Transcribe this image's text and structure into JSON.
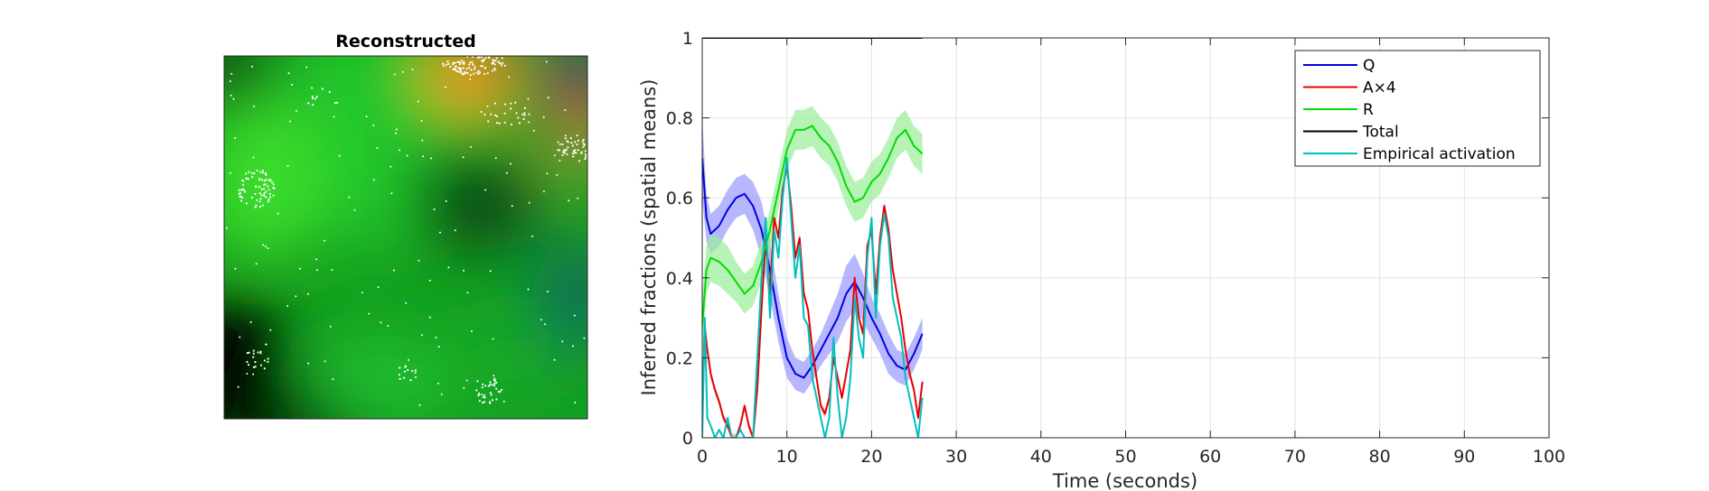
{
  "figure": {
    "left_panel_title": "Reconstructed"
  },
  "chart_data": {
    "type": "line",
    "title": "",
    "xlabel": "Time (seconds)",
    "ylabel": "Inferred fractions (spatial means)",
    "xlim": [
      0,
      100
    ],
    "ylim": [
      0,
      1
    ],
    "xticks": [
      0,
      10,
      20,
      30,
      40,
      50,
      60,
      70,
      80,
      90,
      100
    ],
    "yticks": [
      0,
      0.2,
      0.4,
      0.6,
      0.8,
      1
    ],
    "ytick_labels": [
      "0",
      "0.2",
      "0.4",
      "0.6",
      "0.8",
      "1"
    ],
    "grid": true,
    "legend_position": "top-right",
    "series": [
      {
        "name": "Q",
        "color": "#0000e6",
        "band_color": "#9999ff",
        "x": [
          0,
          0.5,
          1,
          2,
          3,
          4,
          5,
          6,
          7,
          8,
          9,
          10,
          11,
          12,
          13,
          14,
          15,
          16,
          17,
          18,
          19,
          20,
          21,
          22,
          23,
          24,
          25,
          26
        ],
        "y": [
          0.7,
          0.55,
          0.51,
          0.53,
          0.57,
          0.6,
          0.61,
          0.58,
          0.52,
          0.42,
          0.3,
          0.2,
          0.16,
          0.15,
          0.18,
          0.22,
          0.26,
          0.3,
          0.36,
          0.39,
          0.35,
          0.3,
          0.26,
          0.21,
          0.18,
          0.17,
          0.21,
          0.26
        ],
        "band": [
          0.1,
          0.06,
          0.05,
          0.05,
          0.05,
          0.05,
          0.05,
          0.06,
          0.07,
          0.07,
          0.06,
          0.05,
          0.04,
          0.04,
          0.04,
          0.04,
          0.05,
          0.06,
          0.07,
          0.07,
          0.06,
          0.05,
          0.05,
          0.05,
          0.04,
          0.04,
          0.04,
          0.04
        ]
      },
      {
        "name": "A×4",
        "color": "#e60000",
        "band_color": "#ff9999",
        "x": [
          0,
          0.3,
          0.6,
          1,
          1.5,
          2,
          2.5,
          3,
          3.5,
          4,
          4.5,
          5,
          5.5,
          6,
          6.5,
          7,
          7.5,
          8,
          8.5,
          9,
          9.5,
          10,
          10.5,
          11,
          11.5,
          12,
          12.5,
          13,
          13.5,
          14,
          14.5,
          15,
          15.5,
          16,
          16.5,
          17,
          17.5,
          18,
          18.5,
          19,
          19.5,
          20,
          20.5,
          21,
          21.5,
          22,
          22.5,
          23,
          23.5,
          24,
          24.5,
          25,
          25.5,
          26
        ],
        "y": [
          0.05,
          0.28,
          0.22,
          0.16,
          0.12,
          0.09,
          0.05,
          0.03,
          0.0,
          0.0,
          0.03,
          0.08,
          0.03,
          0.0,
          0.12,
          0.32,
          0.5,
          0.36,
          0.55,
          0.5,
          0.62,
          0.68,
          0.58,
          0.45,
          0.5,
          0.36,
          0.32,
          0.22,
          0.15,
          0.08,
          0.06,
          0.1,
          0.2,
          0.15,
          0.1,
          0.16,
          0.22,
          0.4,
          0.3,
          0.26,
          0.48,
          0.52,
          0.36,
          0.5,
          0.58,
          0.52,
          0.42,
          0.36,
          0.3,
          0.22,
          0.16,
          0.12,
          0.05,
          0.14
        ],
        "band": [
          0.01,
          0.01,
          0.01,
          0.01,
          0.01,
          0.01,
          0.01,
          0.01,
          0.01,
          0.01,
          0.01,
          0.01,
          0.01,
          0.01,
          0.01,
          0.01,
          0.01,
          0.01,
          0.01,
          0.01,
          0.01,
          0.01,
          0.01,
          0.01,
          0.01,
          0.01,
          0.01,
          0.01,
          0.01,
          0.01,
          0.01,
          0.01,
          0.01,
          0.01,
          0.01,
          0.01,
          0.01,
          0.01,
          0.01,
          0.01,
          0.01,
          0.01,
          0.01,
          0.01,
          0.01,
          0.01,
          0.01,
          0.01,
          0.01,
          0.01,
          0.01,
          0.01,
          0.01,
          0.01
        ]
      },
      {
        "name": "R",
        "color": "#00dd00",
        "band_color": "#99ee99",
        "x": [
          0,
          0.5,
          1,
          2,
          3,
          4,
          5,
          6,
          7,
          8,
          9,
          10,
          11,
          12,
          13,
          14,
          15,
          16,
          17,
          18,
          19,
          20,
          21,
          22,
          23,
          24,
          25,
          26
        ],
        "y": [
          0.28,
          0.42,
          0.45,
          0.44,
          0.42,
          0.39,
          0.36,
          0.38,
          0.44,
          0.52,
          0.62,
          0.72,
          0.77,
          0.77,
          0.78,
          0.75,
          0.73,
          0.69,
          0.63,
          0.59,
          0.6,
          0.64,
          0.66,
          0.7,
          0.75,
          0.77,
          0.73,
          0.71
        ],
        "band": [
          0.08,
          0.06,
          0.06,
          0.06,
          0.06,
          0.05,
          0.05,
          0.05,
          0.05,
          0.05,
          0.05,
          0.05,
          0.05,
          0.05,
          0.05,
          0.05,
          0.05,
          0.05,
          0.05,
          0.05,
          0.05,
          0.05,
          0.05,
          0.05,
          0.05,
          0.05,
          0.05,
          0.05
        ]
      },
      {
        "name": "Total",
        "color": "#000000",
        "x": [
          0,
          26
        ],
        "y": [
          1,
          1
        ]
      },
      {
        "name": "Empirical activation",
        "color": "#00bfbf",
        "x": [
          0,
          0.3,
          0.6,
          1,
          1.5,
          2,
          2.5,
          3,
          3.5,
          4,
          4.5,
          5,
          5.5,
          6,
          6.5,
          7,
          7.5,
          8,
          8.5,
          9,
          9.5,
          10,
          10.5,
          11,
          11.5,
          12,
          12.5,
          13,
          13.5,
          14,
          14.5,
          15,
          15.5,
          16,
          16.5,
          17,
          17.5,
          18,
          18.5,
          19,
          19.5,
          20,
          20.5,
          21,
          21.5,
          22,
          22.5,
          23,
          23.5,
          24,
          24.5,
          25,
          25.5,
          26
        ],
        "y": [
          0.0,
          0.3,
          0.05,
          0.03,
          0.0,
          0.02,
          0.0,
          0.05,
          0.0,
          0.0,
          0.02,
          0.0,
          0.0,
          0.0,
          0.2,
          0.4,
          0.55,
          0.3,
          0.52,
          0.45,
          0.6,
          0.7,
          0.55,
          0.4,
          0.48,
          0.3,
          0.28,
          0.15,
          0.1,
          0.05,
          0.0,
          0.05,
          0.25,
          0.1,
          0.0,
          0.05,
          0.15,
          0.35,
          0.25,
          0.2,
          0.45,
          0.55,
          0.3,
          0.48,
          0.56,
          0.5,
          0.35,
          0.3,
          0.25,
          0.15,
          0.1,
          0.05,
          0.0,
          0.1
        ]
      }
    ]
  }
}
